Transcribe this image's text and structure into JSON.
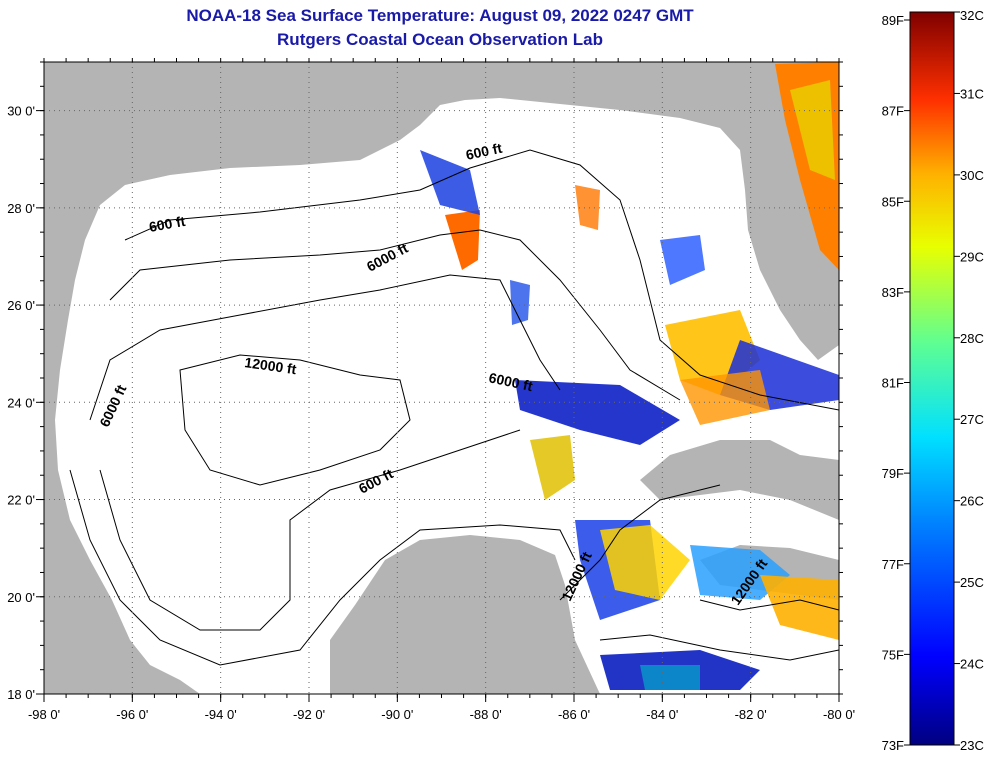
{
  "title": {
    "line1": "NOAA-18 Sea Surface Temperature:  August 09, 2022 0247 GMT",
    "line2": "Rutgers Coastal Ocean Observation Lab"
  },
  "map": {
    "lon_range": [
      -98,
      -80
    ],
    "lat_range": [
      18,
      31
    ],
    "lon_ticks": [
      {
        "value": -98,
        "label": "-98 0'"
      },
      {
        "value": -96,
        "label": "-96 0'"
      },
      {
        "value": -94,
        "label": "-94 0'"
      },
      {
        "value": -92,
        "label": "-92 0'"
      },
      {
        "value": -90,
        "label": "-90 0'"
      },
      {
        "value": -88,
        "label": "-88 0'"
      },
      {
        "value": -86,
        "label": "-86 0'"
      },
      {
        "value": -84,
        "label": "-84 0'"
      },
      {
        "value": -82,
        "label": "-82 0'"
      },
      {
        "value": -80,
        "label": "-80 0'"
      }
    ],
    "lat_ticks": [
      {
        "value": 30,
        "label": "30 0'"
      },
      {
        "value": 28,
        "label": "28 0'"
      },
      {
        "value": 26,
        "label": "26 0'"
      },
      {
        "value": 24,
        "label": "24 0'"
      },
      {
        "value": 22,
        "label": "22 0'"
      },
      {
        "value": 20,
        "label": "20 0'"
      },
      {
        "value": 18,
        "label": "18 0'"
      }
    ],
    "contour_labels": [
      "600 ft",
      "600 ft",
      "6000 ft",
      "6000 ft",
      "12000 ft",
      "6000 ft",
      "600 ft",
      "12000 ft",
      "12000 ft"
    ],
    "colors": {
      "land": "#b4b4b4",
      "water": "#ffffff",
      "grid": "#555555"
    }
  },
  "colorbar": {
    "celsius_labels": [
      "32C",
      "31C",
      "30C",
      "29C",
      "28C",
      "27C",
      "26C",
      "25C",
      "24C",
      "23C"
    ],
    "fahrenheit_labels": [
      "89F",
      "87F",
      "85F",
      "83F",
      "81F",
      "79F",
      "77F",
      "75F",
      "73F"
    ]
  }
}
